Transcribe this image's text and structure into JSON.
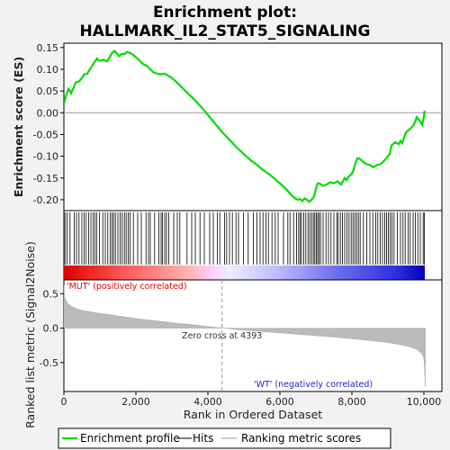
{
  "chart_data": [
    {
      "type": "line",
      "panel": "enrichment",
      "title": "Enrichment plot:",
      "subtitle": "HALLMARK_IL2_STAT5_SIGNALING",
      "ylabel": "Enrichment score (ES)",
      "xlim": [
        0,
        10500
      ],
      "ylim": [
        -0.225,
        0.16
      ],
      "yticks": [
        -0.2,
        -0.15,
        -0.1,
        -0.05,
        0.0,
        0.05,
        0.1,
        0.15
      ],
      "ytick_labels": [
        "-0.20",
        "-0.15",
        "-0.10",
        "-0.05",
        "0.00",
        "0.05",
        "0.10",
        "0.15"
      ],
      "line_color": "#00dd00",
      "series": [
        {
          "name": "Enrichment profile",
          "x": [
            0,
            60,
            130,
            200,
            280,
            330,
            420,
            500,
            560,
            650,
            720,
            800,
            860,
            920,
            960,
            1020,
            1100,
            1200,
            1290,
            1340,
            1410,
            1460,
            1530,
            1600,
            1680,
            1760,
            1820,
            1900,
            2000,
            2100,
            2200,
            2300,
            2400,
            2500,
            2600,
            2700,
            2800,
            2900,
            3000,
            3200,
            3400,
            3600,
            3800,
            4000,
            4200,
            4400,
            4600,
            4800,
            5000,
            5200,
            5400,
            5500,
            5600,
            5800,
            6000,
            6200,
            6350,
            6450,
            6500,
            6560,
            6620,
            6680,
            6750,
            6820,
            6900,
            6950,
            7000,
            7050,
            7100,
            7200,
            7300,
            7400,
            7500,
            7600,
            7700,
            7800,
            7850,
            7900,
            8000,
            8050,
            8100,
            8150,
            8200,
            8300,
            8400,
            8500,
            8600,
            8700,
            8800,
            8900,
            9000,
            9050,
            9100,
            9200,
            9300,
            9350,
            9400,
            9500,
            9600,
            9700,
            9750,
            9800,
            9900,
            9950,
            10000,
            10020
          ],
          "y": [
            0.02,
            0.04,
            0.055,
            0.045,
            0.06,
            0.07,
            0.072,
            0.08,
            0.088,
            0.09,
            0.1,
            0.11,
            0.118,
            0.125,
            0.12,
            0.12,
            0.122,
            0.118,
            0.13,
            0.138,
            0.142,
            0.138,
            0.13,
            0.135,
            0.135,
            0.14,
            0.138,
            0.135,
            0.128,
            0.12,
            0.112,
            0.108,
            0.1,
            0.092,
            0.09,
            0.088,
            0.09,
            0.085,
            0.08,
            0.065,
            0.048,
            0.032,
            0.015,
            -0.005,
            -0.025,
            -0.045,
            -0.062,
            -0.08,
            -0.095,
            -0.11,
            -0.122,
            -0.13,
            -0.135,
            -0.148,
            -0.162,
            -0.178,
            -0.192,
            -0.198,
            -0.2,
            -0.198,
            -0.203,
            -0.197,
            -0.2,
            -0.205,
            -0.198,
            -0.192,
            -0.175,
            -0.162,
            -0.163,
            -0.168,
            -0.165,
            -0.16,
            -0.162,
            -0.158,
            -0.165,
            -0.15,
            -0.155,
            -0.148,
            -0.14,
            -0.13,
            -0.115,
            -0.105,
            -0.105,
            -0.112,
            -0.118,
            -0.12,
            -0.125,
            -0.12,
            -0.118,
            -0.11,
            -0.1,
            -0.095,
            -0.075,
            -0.068,
            -0.072,
            -0.065,
            -0.07,
            -0.045,
            -0.038,
            -0.03,
            -0.022,
            -0.01,
            -0.02,
            -0.028,
            -0.01,
            0.005
          ]
        }
      ]
    },
    {
      "type": "bar",
      "panel": "hits",
      "hit_positions": [
        30,
        90,
        170,
        290,
        350,
        420,
        500,
        560,
        620,
        690,
        750,
        810,
        860,
        910,
        990,
        1080,
        1150,
        1220,
        1290,
        1340,
        1380,
        1430,
        1500,
        1560,
        1620,
        1680,
        1730,
        1790,
        1840,
        1930,
        2050,
        2150,
        2280,
        2350,
        2400,
        2520,
        2640,
        2700,
        2740,
        2800,
        2850,
        2910,
        3050,
        3150,
        3220,
        3420,
        3550,
        3650,
        3780,
        3900,
        4050,
        4150,
        4260,
        4330,
        4460,
        4520,
        4600,
        4680,
        4780,
        4850,
        4990,
        5120,
        5260,
        5360,
        5450,
        5530,
        5610,
        5680,
        5780,
        5870,
        5950,
        6100,
        6220,
        6280,
        6380,
        6460,
        6520,
        6560,
        6600,
        6660,
        6720,
        6780,
        6830,
        6880,
        6930,
        6970,
        7010,
        7050,
        7090,
        7130,
        7200,
        7280,
        7350,
        7420,
        7500,
        7580,
        7620,
        7680,
        7740,
        7800,
        7860,
        7920,
        7980,
        8030,
        8080,
        8130,
        8180,
        8230,
        8320,
        8410,
        8500,
        8580,
        8660,
        8720,
        8790,
        8850,
        8910,
        8960,
        9010,
        9060,
        9110,
        9170,
        9260,
        9350,
        9420,
        9480,
        9560,
        9620,
        9700,
        9760,
        9830,
        9900,
        9980,
        10010
      ]
    },
    {
      "type": "area",
      "panel": "ranked-metric",
      "ylabel": "Ranked list metric (Signal2Noise)",
      "xlabel": "Rank in Ordered Dataset",
      "xlim": [
        0,
        10500
      ],
      "ylim": [
        -0.92,
        0.7
      ],
      "xticks": [
        0,
        2000,
        4000,
        6000,
        8000,
        10000
      ],
      "xtick_labels": [
        "0",
        "2,000",
        "4,000",
        "6,000",
        "8,000",
        "10,000"
      ],
      "yticks": [
        -0.5,
        0.0,
        0.5
      ],
      "ytick_labels": [
        "-0.5",
        "0.0",
        "0.5"
      ],
      "zero_cross": 4393,
      "zero_cross_label": "Zero cross at 4393",
      "pos_label": "'MUT' (positively correlated)",
      "neg_label": "'WT' (negatively correlated)",
      "x": [
        0,
        20,
        60,
        120,
        200,
        350,
        500,
        800,
        1200,
        1600,
        2000,
        2500,
        3000,
        3500,
        4000,
        4393,
        5000,
        5500,
        6000,
        6500,
        7000,
        7500,
        8000,
        8500,
        9000,
        9300,
        9600,
        9800,
        9900,
        9950,
        9990,
        10010,
        10020,
        10030,
        10040
      ],
      "y": [
        0.62,
        0.45,
        0.4,
        0.35,
        0.32,
        0.28,
        0.26,
        0.23,
        0.2,
        0.17,
        0.14,
        0.11,
        0.08,
        0.055,
        0.025,
        0.0,
        -0.03,
        -0.05,
        -0.07,
        -0.09,
        -0.11,
        -0.13,
        -0.155,
        -0.18,
        -0.21,
        -0.235,
        -0.27,
        -0.31,
        -0.35,
        -0.38,
        -0.42,
        -0.5,
        -0.6,
        -0.75,
        -0.85
      ]
    }
  ],
  "legend": {
    "items": [
      {
        "label": "Enrichment profile",
        "color": "#00dd00"
      },
      {
        "label": "Hits",
        "color": "#000000"
      },
      {
        "label": "Ranking metric scores",
        "color": "#bbbbbb"
      }
    ]
  }
}
